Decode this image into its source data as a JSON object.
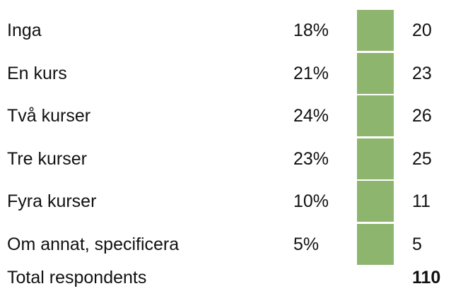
{
  "table": {
    "rows": [
      [
        "Inga",
        "18%",
        "20"
      ],
      [
        "En kurs",
        "21%",
        "23"
      ],
      [
        "Två kurser",
        "24%",
        "26"
      ],
      [
        "Tre kurser",
        "23%",
        "25"
      ],
      [
        "Fyra kurser",
        "10%",
        "11"
      ],
      [
        "Om annat, specificera",
        "5%",
        "5"
      ]
    ],
    "total": {
      "label": "Total respondents",
      "value": "110"
    }
  }
}
